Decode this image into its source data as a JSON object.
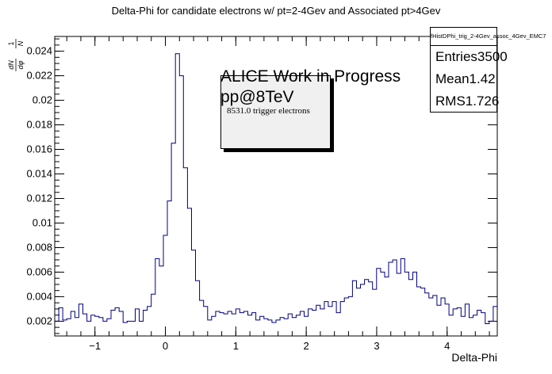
{
  "chart_data": {
    "type": "histogram",
    "title": "Delta-Phi for candidate electrons w/ pt=2-4Gev and Associated pt>4Gev",
    "xlabel": "Delta-Phi",
    "ylabel": "1/N_{e} dN/dΦ",
    "xlim": [
      -1.571,
      4.712
    ],
    "ylim": [
      0.0008,
      0.0252
    ],
    "xticks": [
      -1,
      0,
      1,
      2,
      3,
      4
    ],
    "yticks": [
      0.002,
      0.004,
      0.006,
      0.008,
      0.01,
      0.012,
      0.014,
      0.016,
      0.018,
      0.02,
      0.022,
      0.024
    ],
    "bin_width": 0.0873,
    "series": [
      {
        "values": [
          0.002,
          0.0031,
          0.0021,
          0.0022,
          0.0028,
          0.0023,
          0.0034,
          0.0026,
          0.002,
          0.0025,
          0.0024,
          0.0023,
          0.002,
          0.0022,
          0.0029,
          0.0031,
          0.0028,
          0.0019,
          0.002,
          0.002,
          0.003,
          0.002,
          0.0029,
          0.0032,
          0.0042,
          0.0071,
          0.0065,
          0.009,
          0.0118,
          0.0165,
          0.0238,
          0.022,
          0.0145,
          0.0112,
          0.0078,
          0.0053,
          0.0037,
          0.0032,
          0.0021,
          0.0024,
          0.0028,
          0.0027,
          0.0026,
          0.0028,
          0.0026,
          0.003,
          0.0027,
          0.0028,
          0.0025,
          0.0027,
          0.0021,
          0.0024,
          0.0022,
          0.0021,
          0.0019,
          0.0021,
          0.0023,
          0.0022,
          0.0026,
          0.0023,
          0.0025,
          0.0028,
          0.0024,
          0.003,
          0.0029,
          0.0033,
          0.003,
          0.0036,
          0.0032,
          0.0036,
          0.0027,
          0.0036,
          0.0039,
          0.004,
          0.0053,
          0.0047,
          0.005,
          0.0054,
          0.0052,
          0.0046,
          0.0063,
          0.006,
          0.0056,
          0.0068,
          0.007,
          0.0059,
          0.0071,
          0.006,
          0.0054,
          0.006,
          0.0048,
          0.0047,
          0.0043,
          0.0039,
          0.0041,
          0.0033,
          0.0039,
          0.0034,
          0.0025,
          0.003,
          0.0031,
          0.0024,
          0.0034,
          0.0023,
          0.0025,
          0.0029,
          0.0027,
          0.0018,
          0.002,
          0.0032
        ]
      }
    ],
    "color": "#000080"
  },
  "stats": {
    "name": "fHistDPhi_trig_2-4Gev_assoc_4Gev_EMC7",
    "rows": [
      {
        "label": "Entries",
        "value": "3500"
      },
      {
        "label": "Mean",
        "value": "1.42"
      },
      {
        "label": "RMS",
        "value": "1.726"
      }
    ]
  },
  "annotation": {
    "line1": "ALICE Work in Progress",
    "line2": "pp@8TeV",
    "line3": "8531.0 trigger electrons"
  }
}
